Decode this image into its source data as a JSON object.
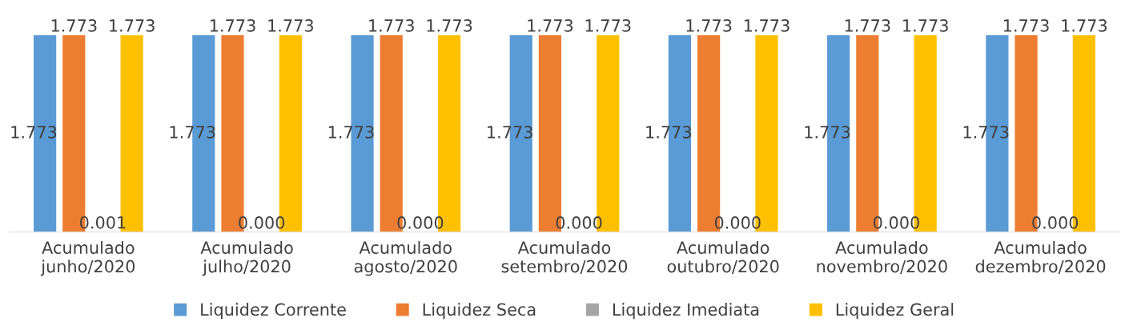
{
  "chart_data": {
    "type": "bar",
    "categories": [
      "Acumulado\njunho/2020",
      "Acumulado\njulho/2020",
      "Acumulado\nagosto/2020",
      "Acumulado\nsetembro/2020",
      "Acumulado\noutubro/2020",
      "Acumulado\nnovembro/2020",
      "Acumulado\ndezembro/2020"
    ],
    "series": [
      {
        "name": "Liquidez Corrente",
        "color": "#5b9bd5",
        "values": [
          1.773,
          1.773,
          1.773,
          1.773,
          1.773,
          1.773,
          1.773
        ],
        "value_labels": [
          "1.773",
          "1.773",
          "1.773",
          "1.773",
          "1.773",
          "1.773",
          "1.773"
        ]
      },
      {
        "name": "Liquidez Seca",
        "color": "#ed7d31",
        "values": [
          1.773,
          1.773,
          1.773,
          1.773,
          1.773,
          1.773,
          1.773
        ],
        "value_labels": [
          "1.773",
          "1.773",
          "1.773",
          "1.773",
          "1.773",
          "1.773",
          "1.773"
        ]
      },
      {
        "name": "Liquidez Imediata",
        "color": "#a5a5a5",
        "values": [
          0.001,
          0,
          0,
          0,
          0,
          0,
          0
        ],
        "value_labels": [
          "0.001",
          "0.000",
          "0.000",
          "0.000",
          "0.000",
          "0.000",
          "0.000"
        ]
      },
      {
        "name": "Liquidez Geral",
        "color": "#ffc000",
        "values": [
          1.773,
          1.773,
          1.773,
          1.773,
          1.773,
          1.773,
          1.773
        ],
        "value_labels": [
          "1.773",
          "1.773",
          "1.773",
          "1.773",
          "1.773",
          "1.773",
          "1.773"
        ]
      }
    ],
    "legend": "bottom",
    "grid": false
  }
}
